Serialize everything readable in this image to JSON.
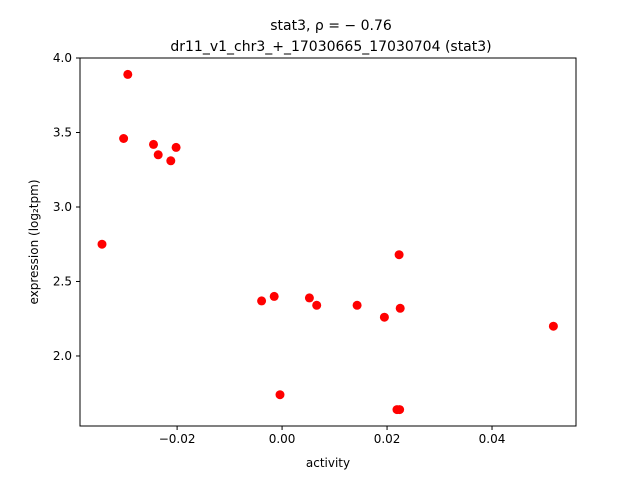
{
  "chart_data": {
    "type": "scatter",
    "title_line1": "stat3, ρ = − 0.76",
    "title_line2": "dr11_v1_chr3_+_17030665_17030704 (stat3)",
    "xlabel": "activity",
    "ylabel": "expression (log₂tpm)",
    "xlim": [
      -0.0385,
      0.056
    ],
    "ylim": [
      1.53,
      4.0
    ],
    "x_ticks": [
      {
        "value": -0.02,
        "label": "−0.02"
      },
      {
        "value": 0.0,
        "label": "0.00"
      },
      {
        "value": 0.02,
        "label": "0.02"
      },
      {
        "value": 0.04,
        "label": "0.04"
      }
    ],
    "y_ticks": [
      {
        "value": 2.0,
        "label": "2.0"
      },
      {
        "value": 2.5,
        "label": "2.5"
      },
      {
        "value": 3.0,
        "label": "3.0"
      },
      {
        "value": 3.5,
        "label": "3.5"
      },
      {
        "value": 4.0,
        "label": "4.0"
      }
    ],
    "grid": false,
    "marker_color": "#ff0000",
    "points": [
      {
        "x": -0.0294,
        "y": 3.89
      },
      {
        "x": -0.0302,
        "y": 3.46
      },
      {
        "x": -0.0245,
        "y": 3.42
      },
      {
        "x": -0.0236,
        "y": 3.35
      },
      {
        "x": -0.0202,
        "y": 3.4
      },
      {
        "x": -0.0212,
        "y": 3.31
      },
      {
        "x": -0.0343,
        "y": 2.75
      },
      {
        "x": -0.0039,
        "y": 2.37
      },
      {
        "x": -0.0015,
        "y": 2.4
      },
      {
        "x": 0.0052,
        "y": 2.39
      },
      {
        "x": 0.0066,
        "y": 2.34
      },
      {
        "x": 0.0143,
        "y": 2.34
      },
      {
        "x": 0.0195,
        "y": 2.26
      },
      {
        "x": 0.0225,
        "y": 2.32
      },
      {
        "x": 0.0223,
        "y": 2.68
      },
      {
        "x": -0.0004,
        "y": 1.74
      },
      {
        "x": 0.0219,
        "y": 1.64
      },
      {
        "x": 0.0224,
        "y": 1.64
      },
      {
        "x": 0.0517,
        "y": 2.2
      }
    ]
  }
}
